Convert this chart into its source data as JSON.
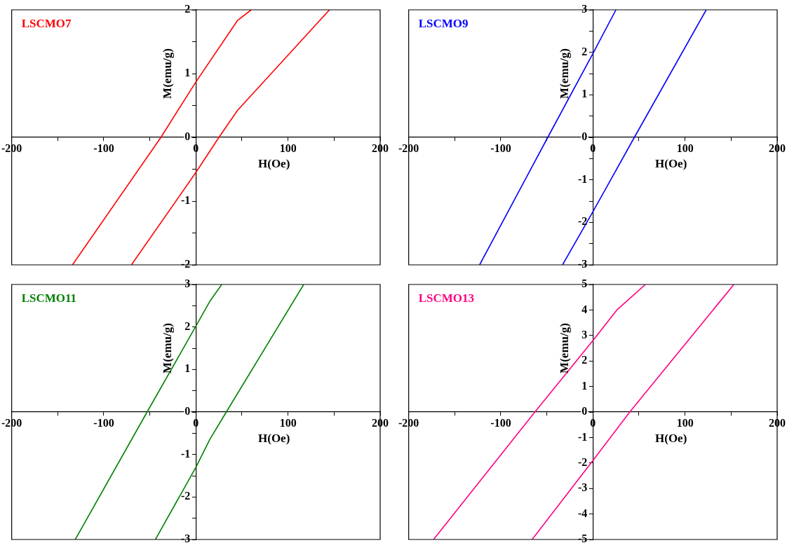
{
  "chart_data": [
    {
      "type": "line",
      "xlabel": "H(Oe)",
      "ylabel": "M(emu/g)",
      "legend": "top left",
      "grid": false,
      "marker": "none",
      "line_style": "solid",
      "xlim": [
        -200,
        200
      ],
      "ylim": [
        -2,
        2
      ],
      "xticks": [
        -200,
        {
          "value": -150,
          "label": null
        },
        -100,
        {
          "value": -50,
          "label": null
        },
        0,
        {
          "value": 50,
          "label": null
        },
        100,
        {
          "value": 150,
          "label": null
        },
        200
      ],
      "yticks": [
        -2,
        {
          "value": -1.5,
          "label": null
        },
        -1,
        {
          "value": -0.5,
          "label": null
        },
        0,
        {
          "value": 0.5,
          "label": null
        },
        1,
        {
          "value": 1.5,
          "label": null
        },
        2
      ],
      "series": [
        {
          "name": "LSCMO7",
          "color": "#ff0000",
          "x": [
            60,
            45,
            0,
            -38,
            -134,
            -100,
            -70,
            0,
            25,
            45,
            145
          ],
          "values": [
            2,
            1.83,
            0.87,
            0,
            -2,
            null,
            -2,
            -0.55,
            0,
            0.42,
            2
          ]
        }
      ]
    },
    {
      "type": "line",
      "xlabel": "H(Oe)",
      "ylabel": "M(emu/g)",
      "legend": "top left",
      "grid": false,
      "marker": "none",
      "line_style": "solid",
      "xlim": [
        -200,
        200
      ],
      "ylim": [
        -3,
        3
      ],
      "xticks": [
        -200,
        {
          "value": -150,
          "label": null
        },
        -100,
        {
          "value": -50,
          "label": null
        },
        0,
        {
          "value": 50,
          "label": null
        },
        100,
        {
          "value": 150,
          "label": null
        },
        200
      ],
      "yticks": [
        -3,
        {
          "value": -2.5,
          "label": null
        },
        -2,
        {
          "value": -1.5,
          "label": null
        },
        -1,
        {
          "value": -0.5,
          "label": null
        },
        0,
        {
          "value": 0.5,
          "label": null
        },
        1,
        {
          "value": 1.5,
          "label": null
        },
        2,
        {
          "value": 2.5,
          "label": null
        },
        3
      ],
      "series": [
        {
          "name": "LSCMO9",
          "color": "#0000ff",
          "x": [
            25,
            0,
            -49,
            -123,
            -80,
            -33,
            0,
            45,
            123
          ],
          "values": [
            3,
            1.97,
            0,
            -3,
            null,
            -3,
            -1.75,
            0,
            3
          ]
        }
      ]
    },
    {
      "type": "line",
      "xlabel": "H(Oe)",
      "ylabel": "M(emu/g)",
      "legend": "top left",
      "grid": false,
      "marker": "none",
      "line_style": "solid",
      "xlim": [
        -200,
        200
      ],
      "ylim": [
        -3,
        3
      ],
      "xticks": [
        -200,
        {
          "value": -150,
          "label": null
        },
        -100,
        {
          "value": -50,
          "label": null
        },
        0,
        {
          "value": 50,
          "label": null
        },
        100,
        {
          "value": 150,
          "label": null
        },
        200
      ],
      "yticks": [
        -3,
        {
          "value": -2.5,
          "label": null
        },
        -2,
        {
          "value": -1.5,
          "label": null
        },
        -1,
        {
          "value": -0.5,
          "label": null
        },
        0,
        {
          "value": 0.5,
          "label": null
        },
        1,
        {
          "value": 1.5,
          "label": null
        },
        2,
        {
          "value": 2.5,
          "label": null
        },
        3
      ],
      "series": [
        {
          "name": "LSCMO11",
          "color": "#008000",
          "x": [
            28,
            15,
            0,
            -53,
            -131,
            -90,
            -44,
            0,
            15,
            33,
            117
          ],
          "values": [
            3,
            2.6,
            2.02,
            0,
            -3,
            null,
            -3,
            -1.3,
            -0.65,
            0,
            3
          ]
        }
      ]
    },
    {
      "type": "line",
      "xlabel": "H(Oe)",
      "ylabel": "M(emu/g)",
      "legend": "top left",
      "grid": false,
      "marker": "none",
      "line_style": "solid",
      "xlim": [
        -200,
        200
      ],
      "ylim": [
        -5,
        5
      ],
      "xticks": [
        -200,
        {
          "value": -150,
          "label": null
        },
        -100,
        {
          "value": -50,
          "label": null
        },
        0,
        {
          "value": 50,
          "label": null
        },
        100,
        {
          "value": 150,
          "label": null
        },
        200
      ],
      "yticks": [
        -5,
        -4,
        -3,
        -2,
        -1,
        0,
        1,
        2,
        3,
        4,
        5
      ],
      "series": [
        {
          "name": "LSCMO13",
          "color": "#ff0080",
          "x": [
            57,
            26,
            0,
            -63,
            -173,
            -120,
            -66,
            0,
            40,
            153
          ],
          "values": [
            5,
            4,
            2.8,
            0,
            -5,
            null,
            -5,
            -1.9,
            0,
            5
          ]
        }
      ]
    }
  ]
}
